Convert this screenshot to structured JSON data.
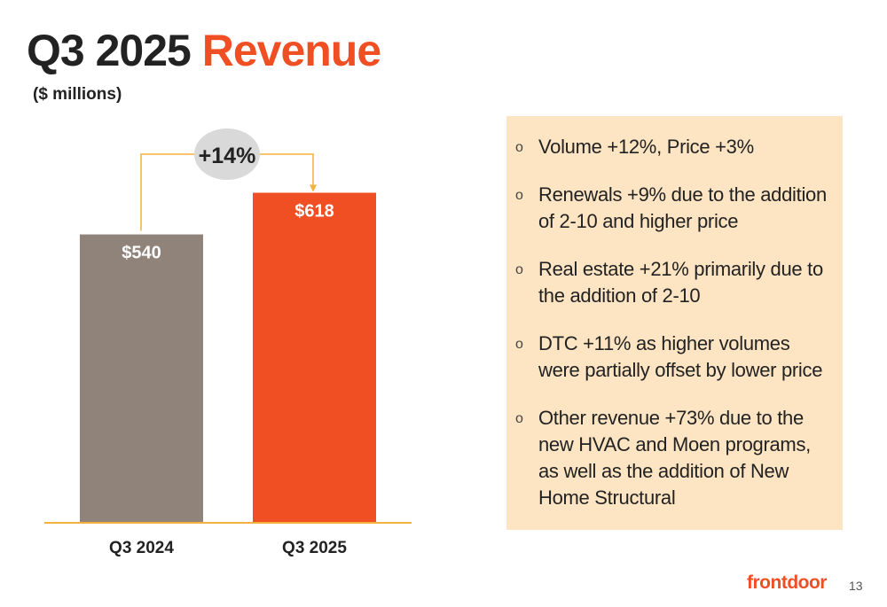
{
  "slide": {
    "title_main": "Q3 2025",
    "title_accent": "Revenue",
    "subtitle": "($ millions)",
    "page_number": "13",
    "logo_text": "frontdoor"
  },
  "colors": {
    "accent": "#f04e23",
    "bar_prior": "#8f837a",
    "bar_current": "#f04e23",
    "connector": "#f4b13d",
    "badge": "#d9d9d9",
    "panel": "#fde4c3"
  },
  "chart_data": {
    "type": "bar",
    "title": "Q3 2025 Revenue",
    "ylabel": "($ millions)",
    "categories": [
      "Q3 2024",
      "Q3 2025"
    ],
    "values": [
      540,
      618
    ],
    "value_labels": [
      "$540",
      "$618"
    ],
    "ylim": [
      0,
      740
    ],
    "grid": false,
    "annotation": "+14%"
  },
  "notes": {
    "bullet_icon": "hollow-circle-icon",
    "marker": "o",
    "items": [
      "Volume +12%, Price +3%",
      "Renewals +9% due to the addition of 2-10 and higher price",
      "Real estate +21% primarily due to the addition of 2-10",
      "DTC +11% as higher volumes were partially offset by lower price",
      "Other revenue +73% due to the new HVAC and Moen programs, as well as the addition of New Home Structural"
    ]
  }
}
